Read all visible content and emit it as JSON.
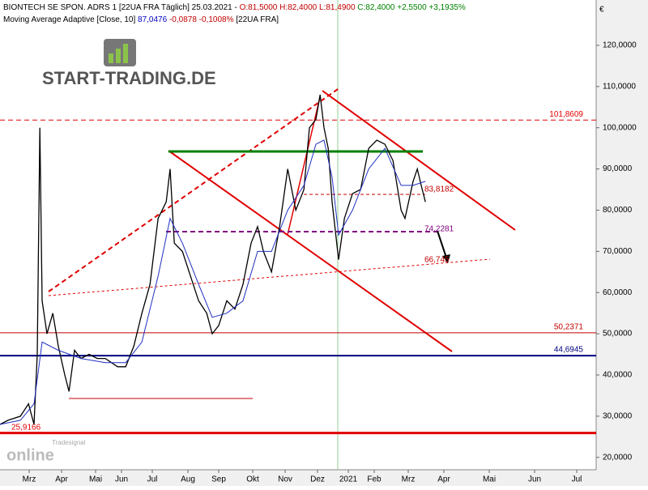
{
  "chart_data": {
    "type": "line",
    "header": [
      {
        "text": "BIONTECH SE SPON. ADRS 1 [22UA FRA  Täglich] 25.03.2021 - ",
        "color": "#000000"
      },
      {
        "text": "O:81,5000 H:82,4000 L:81,4900 ",
        "color": "#c00000"
      },
      {
        "text": "C:82,4000 +2,5500 +3,1935%",
        "color": "#008000"
      }
    ],
    "subheader": [
      {
        "text": "Moving Average Adaptive [Close, 10] ",
        "color": "#000000"
      },
      {
        "text": "87,0476 ",
        "color": "#0000c0"
      },
      {
        "text": "-0,0878 -0,1008% ",
        "color": "#c00000"
      },
      {
        "text": "[22UA FRA]",
        "color": "#000000"
      }
    ],
    "currency": "€",
    "logo": "START-TRADING.DE",
    "watermark": [
      "Tradesignal",
      "online"
    ],
    "xlim": [
      0,
      18.4
    ],
    "xticks": [
      {
        "value": 0.9,
        "label": "Mrz"
      },
      {
        "value": 1.9,
        "label": "Apr"
      },
      {
        "value": 2.95,
        "label": "Mai"
      },
      {
        "value": 3.75,
        "label": "Jun"
      },
      {
        "value": 4.7,
        "label": "Jul"
      },
      {
        "value": 5.8,
        "label": "Aug"
      },
      {
        "value": 6.75,
        "label": "Sep"
      },
      {
        "value": 7.8,
        "label": "Okt"
      },
      {
        "value": 8.8,
        "label": "Nov"
      },
      {
        "value": 9.8,
        "label": "Dez"
      },
      {
        "value": 10.75,
        "label": "2021"
      },
      {
        "value": 11.55,
        "label": "Feb"
      },
      {
        "value": 12.6,
        "label": "Mrz"
      },
      {
        "value": 13.7,
        "label": "Apr"
      },
      {
        "value": 15.1,
        "label": "Mai"
      },
      {
        "value": 16.5,
        "label": "Jun"
      },
      {
        "value": 17.8,
        "label": "Jul"
      }
    ],
    "ylim": [
      17,
      131
    ],
    "yticks": [
      {
        "value": 20,
        "label": "20,0000"
      },
      {
        "value": 30,
        "label": "30,0000"
      },
      {
        "value": 40,
        "label": "40,0000"
      },
      {
        "value": 50,
        "label": "50,0000"
      },
      {
        "value": 60,
        "label": "60,0000"
      },
      {
        "value": 70,
        "label": "70,0000"
      },
      {
        "value": 80,
        "label": "80,0000"
      },
      {
        "value": 90,
        "label": "90,0000"
      },
      {
        "value": 100,
        "label": "100,0000"
      },
      {
        "value": 110,
        "label": "110,0000"
      },
      {
        "value": 120,
        "label": "120,0000"
      }
    ],
    "series": [
      {
        "color": "#000000",
        "x": [
          0,
          0.25,
          0.63,
          0.88,
          1.05,
          1.15,
          1.23,
          1.3,
          1.45,
          1.63,
          1.8,
          2,
          2.13,
          2.3,
          2.5,
          2.75,
          3,
          3.25,
          3.63,
          3.88,
          4.13,
          4.38,
          4.63,
          4.88,
          5.13,
          5.25,
          5.38,
          5.63,
          5.88,
          6.13,
          6.38,
          6.55,
          6.75,
          7,
          7.25,
          7.5,
          7.75,
          7.95,
          8.13,
          8.38,
          8.63,
          8.88,
          9.13,
          9.38,
          9.55,
          9.75,
          9.88,
          10,
          10.13,
          10.25,
          10.45,
          10.63,
          10.88,
          11.13,
          11.38,
          11.63,
          11.88,
          12.13,
          12.38,
          12.5,
          12.75,
          12.88,
          13,
          13.13
        ],
        "values": [
          28,
          29,
          30,
          33,
          28,
          45,
          100,
          58,
          50,
          55,
          47,
          40,
          36,
          46,
          44,
          45,
          44,
          44,
          42,
          42,
          47,
          55,
          62,
          78,
          82,
          90,
          72,
          70,
          64,
          58,
          55,
          50,
          52,
          58,
          56,
          62,
          72,
          76,
          70,
          65,
          76,
          90,
          80,
          85,
          100,
          102,
          108,
          100,
          95,
          82,
          68,
          78,
          84,
          85,
          95,
          97,
          96,
          92,
          80,
          78,
          87,
          90,
          86,
          82
        ]
      },
      {
        "color": "#2030c0",
        "x": [
          0,
          0.63,
          1.05,
          1.3,
          1.8,
          2.5,
          3.25,
          3.88,
          4.38,
          4.88,
          5.25,
          5.63,
          6.13,
          6.55,
          7,
          7.5,
          7.95,
          8.38,
          8.88,
          9.38,
          9.75,
          10,
          10.25,
          10.45,
          10.88,
          11.38,
          11.88,
          12.38,
          12.75,
          13.13
        ],
        "values": [
          28,
          29,
          33,
          48,
          46,
          44,
          43,
          43,
          48,
          64,
          78,
          72,
          62,
          54,
          55,
          58,
          70,
          70,
          80,
          86,
          96,
          97,
          88,
          74,
          80,
          90,
          95,
          86,
          86,
          87
        ]
      }
    ],
    "levels": [
      {
        "value": 101.8609,
        "label": "101,8609",
        "color": "#e00000",
        "style": "dashed",
        "width": 1
      },
      {
        "value": 50.2371,
        "label": "50,2371",
        "color": "#c00000",
        "style": "solid",
        "width": 1
      },
      {
        "value": 44.6945,
        "label": "44,6945",
        "color": "#000080",
        "style": "solid",
        "width": 2
      },
      {
        "value": 25.9166,
        "label": "25,9166",
        "color": "#e00000",
        "style": "solid",
        "width": 3
      }
    ],
    "marks": [
      {
        "value": 83.8182,
        "label": "83,8182",
        "color": "#c00000"
      },
      {
        "value": 74.2281,
        "label": "74,2281",
        "color": "#800080"
      },
      {
        "value": 66.745,
        "label": "66,745",
        "color": "#c00000"
      }
    ]
  }
}
